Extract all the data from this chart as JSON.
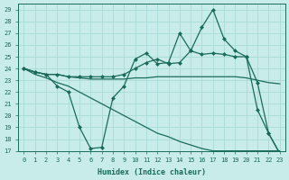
{
  "xlabel": "Humidex (Indice chaleur)",
  "bg_color": "#c8ece9",
  "grid_color": "#a8dbd6",
  "line_color": "#1a6b5a",
  "xlim": [
    -0.5,
    23.5
  ],
  "ylim": [
    17,
    29.5
  ],
  "yticks": [
    17,
    18,
    19,
    20,
    21,
    22,
    23,
    24,
    25,
    26,
    27,
    28,
    29
  ],
  "xticks": [
    0,
    1,
    2,
    3,
    4,
    5,
    6,
    7,
    8,
    9,
    10,
    11,
    12,
    13,
    14,
    15,
    16,
    17,
    18,
    19,
    20,
    21,
    22,
    23
  ],
  "line1_x": [
    0,
    1,
    2,
    3,
    4,
    5,
    6,
    7,
    8,
    9,
    10,
    11,
    12,
    13,
    14,
    15,
    16,
    17,
    18,
    19,
    20,
    21,
    22,
    23
  ],
  "line1_y": [
    24.0,
    23.7,
    23.5,
    23.5,
    23.3,
    23.3,
    23.3,
    23.3,
    23.3,
    23.5,
    24.0,
    24.5,
    24.8,
    24.4,
    24.5,
    25.5,
    25.2,
    25.3,
    25.2,
    25.0,
    25.0,
    22.8,
    18.5,
    16.8
  ],
  "line2_x": [
    0,
    1,
    2,
    3,
    4,
    5,
    6,
    7,
    8,
    9,
    10,
    11,
    12,
    13,
    14,
    15,
    16,
    17,
    18,
    19,
    20,
    21,
    22,
    23
  ],
  "line2_y": [
    24.0,
    23.7,
    23.5,
    23.5,
    23.3,
    23.2,
    23.1,
    23.1,
    23.1,
    23.1,
    23.2,
    23.2,
    23.3,
    23.3,
    23.3,
    23.3,
    23.3,
    23.3,
    23.3,
    23.3,
    23.2,
    23.0,
    22.8,
    22.7
  ],
  "line3_x": [
    0,
    1,
    2,
    3,
    4,
    5,
    6,
    7,
    8,
    9,
    10,
    11,
    12,
    13,
    14,
    15,
    16,
    17,
    18,
    19,
    20,
    21,
    22,
    23
  ],
  "line3_y": [
    24.0,
    23.7,
    23.5,
    22.5,
    22.0,
    19.0,
    17.2,
    17.3,
    21.5,
    22.5,
    24.8,
    25.3,
    24.4,
    24.5,
    27.0,
    25.5,
    27.5,
    29.0,
    26.5,
    25.5,
    25.0,
    20.5,
    18.5,
    16.8
  ],
  "line4_x": [
    0,
    1,
    2,
    3,
    4,
    5,
    6,
    7,
    8,
    9,
    10,
    11,
    12,
    13,
    14,
    15,
    16,
    17,
    18,
    19,
    20,
    21,
    22,
    23
  ],
  "line4_y": [
    24.0,
    23.5,
    23.2,
    22.8,
    22.5,
    22.0,
    21.5,
    21.0,
    20.5,
    20.0,
    19.5,
    19.0,
    18.5,
    18.2,
    17.8,
    17.5,
    17.2,
    17.0,
    17.0,
    17.0,
    17.0,
    17.0,
    17.0,
    17.0
  ],
  "marker_size": 2.5,
  "linewidth": 0.9
}
